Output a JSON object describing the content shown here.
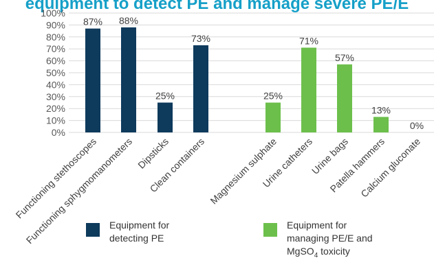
{
  "title": "equipment to detect PE and manage severe PE/E",
  "colors": {
    "detecting": "#0e3a5c",
    "managing": "#6cbf4b",
    "grid": "#d9d9d9"
  },
  "chart_data": {
    "type": "bar",
    "categories": [
      "Functioning stethoscopes",
      "Functioning sphygmomanometers",
      "Dipsticks",
      "Clean containers",
      "Magnesium sulphate",
      "Urine catheters",
      "Urine bags",
      "Patella hammers",
      "Calcium gluconate"
    ],
    "groups": [
      "detecting",
      "detecting",
      "detecting",
      "detecting",
      "managing",
      "managing",
      "managing",
      "managing",
      "managing"
    ],
    "values": [
      87,
      88,
      25,
      73,
      25,
      71,
      57,
      13,
      0
    ],
    "data_labels": [
      "87%",
      "88%",
      "25%",
      "73%",
      "25%",
      "71%",
      "57%",
      "13%",
      "0%"
    ],
    "yticks": [
      "0%",
      "10%",
      "20%",
      "30%",
      "40%",
      "50%",
      "60%",
      "70%",
      "80%",
      "90%",
      "100%"
    ],
    "ylim": [
      0,
      100
    ],
    "grid": true
  },
  "legend": {
    "detecting": {
      "line1": "Equipment for",
      "line2": "detecting PE"
    },
    "managing": {
      "line1": "Equipment for",
      "line2": "managing PE/E and",
      "line3_pre": "MgSO",
      "line3_sub": "4",
      "line3_post": " toxicity"
    }
  }
}
